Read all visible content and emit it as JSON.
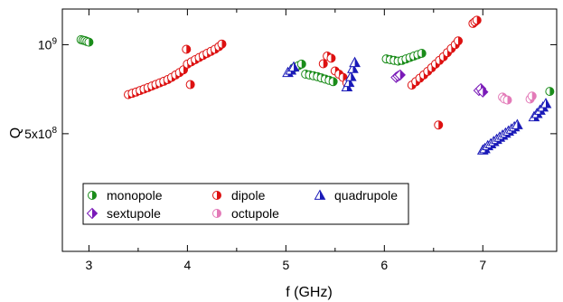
{
  "chart_data": {
    "type": "scatter",
    "xlabel": "f (GHz)",
    "ylabel": "Q",
    "xlim": [
      2.73,
      7.75
    ],
    "ylim": [
      200000000,
      1320000000
    ],
    "y_scale": "log",
    "x_ticks": [
      3,
      4,
      5,
      6,
      7
    ],
    "x_tick_labels": [
      "3",
      "4",
      "5",
      "6",
      "7"
    ],
    "y_ticks": [
      500000000,
      1000000000
    ],
    "y_tick_labels": [
      {
        "mantissa": "5x10",
        "exponent": "8"
      },
      {
        "mantissa": "10",
        "exponent": "9"
      }
    ],
    "grid": false,
    "legend_position": "bottom-left",
    "legend_columns": 3,
    "series": [
      {
        "name": "monopole",
        "marker": "half-circle",
        "color": "#1a8c1a",
        "points": [
          [
            2.92,
            1040000000
          ],
          [
            2.94,
            1035000000
          ],
          [
            2.96,
            1032000000
          ],
          [
            2.98,
            1025000000
          ],
          [
            3.0,
            1020000000
          ],
          [
            5.08,
            835000000
          ],
          [
            5.1,
            840000000
          ],
          [
            5.13,
            850000000
          ],
          [
            5.16,
            860000000
          ],
          [
            5.2,
            795000000
          ],
          [
            5.24,
            790000000
          ],
          [
            5.28,
            785000000
          ],
          [
            5.32,
            780000000
          ],
          [
            5.36,
            772000000
          ],
          [
            5.4,
            765000000
          ],
          [
            5.44,
            758000000
          ],
          [
            5.48,
            750000000
          ],
          [
            6.02,
            895000000
          ],
          [
            6.06,
            890000000
          ],
          [
            6.1,
            885000000
          ],
          [
            6.14,
            880000000
          ],
          [
            6.18,
            885000000
          ],
          [
            6.22,
            895000000
          ],
          [
            6.26,
            905000000
          ],
          [
            6.3,
            915000000
          ],
          [
            6.34,
            925000000
          ],
          [
            6.38,
            935000000
          ],
          [
            7.68,
            695000000
          ]
        ]
      },
      {
        "name": "dipole",
        "marker": "half-circle",
        "color": "#dd1111",
        "points": [
          [
            3.4,
            678000000
          ],
          [
            3.44,
            685000000
          ],
          [
            3.48,
            692000000
          ],
          [
            3.52,
            700000000
          ],
          [
            3.56,
            708000000
          ],
          [
            3.6,
            716000000
          ],
          [
            3.64,
            725000000
          ],
          [
            3.68,
            734000000
          ],
          [
            3.72,
            743000000
          ],
          [
            3.76,
            752000000
          ],
          [
            3.8,
            762000000
          ],
          [
            3.84,
            775000000
          ],
          [
            3.88,
            790000000
          ],
          [
            3.92,
            805000000
          ],
          [
            3.96,
            822000000
          ],
          [
            4.0,
            860000000
          ],
          [
            4.04,
            875000000
          ],
          [
            4.08,
            890000000
          ],
          [
            4.12,
            905000000
          ],
          [
            4.16,
            920000000
          ],
          [
            4.2,
            935000000
          ],
          [
            4.24,
            950000000
          ],
          [
            4.28,
            965000000
          ],
          [
            4.32,
            985000000
          ],
          [
            4.35,
            1005000000
          ],
          [
            3.99,
            965000000
          ],
          [
            4.03,
            733000000
          ],
          [
            5.38,
            862000000
          ],
          [
            5.42,
            915000000
          ],
          [
            5.46,
            900000000
          ],
          [
            5.5,
            815000000
          ],
          [
            5.54,
            795000000
          ],
          [
            5.58,
            775000000
          ],
          [
            5.62,
            742000000
          ],
          [
            6.28,
            730000000
          ],
          [
            6.32,
            750000000
          ],
          [
            6.36,
            770000000
          ],
          [
            6.4,
            790000000
          ],
          [
            6.44,
            812000000
          ],
          [
            6.48,
            835000000
          ],
          [
            6.52,
            860000000
          ],
          [
            6.56,
            885000000
          ],
          [
            6.6,
            910000000
          ],
          [
            6.64,
            940000000
          ],
          [
            6.68,
            970000000
          ],
          [
            6.72,
            1000000000
          ],
          [
            6.75,
            1030000000
          ],
          [
            6.9,
            1180000000
          ],
          [
            6.92,
            1195000000
          ],
          [
            6.94,
            1210000000
          ],
          [
            6.55,
            535000000
          ]
        ]
      },
      {
        "name": "quadrupole",
        "marker": "triangle",
        "color": "#1a1ab8",
        "points": [
          [
            5.02,
            805000000
          ],
          [
            5.05,
            820000000
          ],
          [
            5.08,
            840000000
          ],
          [
            5.62,
            720000000
          ],
          [
            5.64,
            745000000
          ],
          [
            5.66,
            780000000
          ],
          [
            5.68,
            830000000
          ],
          [
            5.7,
            870000000
          ],
          [
            7.0,
            440000000
          ],
          [
            7.02,
            445000000
          ],
          [
            7.05,
            455000000
          ],
          [
            7.08,
            462000000
          ],
          [
            7.11,
            470000000
          ],
          [
            7.14,
            478000000
          ],
          [
            7.17,
            486000000
          ],
          [
            7.2,
            494000000
          ],
          [
            7.23,
            502000000
          ],
          [
            7.26,
            510000000
          ],
          [
            7.29,
            518000000
          ],
          [
            7.32,
            527000000
          ],
          [
            7.35,
            536000000
          ],
          [
            7.52,
            570000000
          ],
          [
            7.55,
            585000000
          ],
          [
            7.58,
            600000000
          ],
          [
            7.61,
            615000000
          ],
          [
            7.64,
            632000000
          ]
        ]
      },
      {
        "name": "sextupole",
        "marker": "diamond",
        "color": "#7a1ab8",
        "points": [
          [
            6.12,
            775000000
          ],
          [
            6.14,
            783000000
          ],
          [
            6.16,
            790000000
          ],
          [
            6.96,
            700000000
          ],
          [
            6.98,
            710000000
          ],
          [
            7.0,
            692000000
          ]
        ]
      },
      {
        "name": "octupole",
        "marker": "half-circle",
        "color": "#e37ab8",
        "points": [
          [
            7.2,
            665000000
          ],
          [
            7.22,
            655000000
          ],
          [
            7.25,
            650000000
          ],
          [
            7.48,
            655000000
          ],
          [
            7.5,
            670000000
          ]
        ]
      }
    ]
  }
}
